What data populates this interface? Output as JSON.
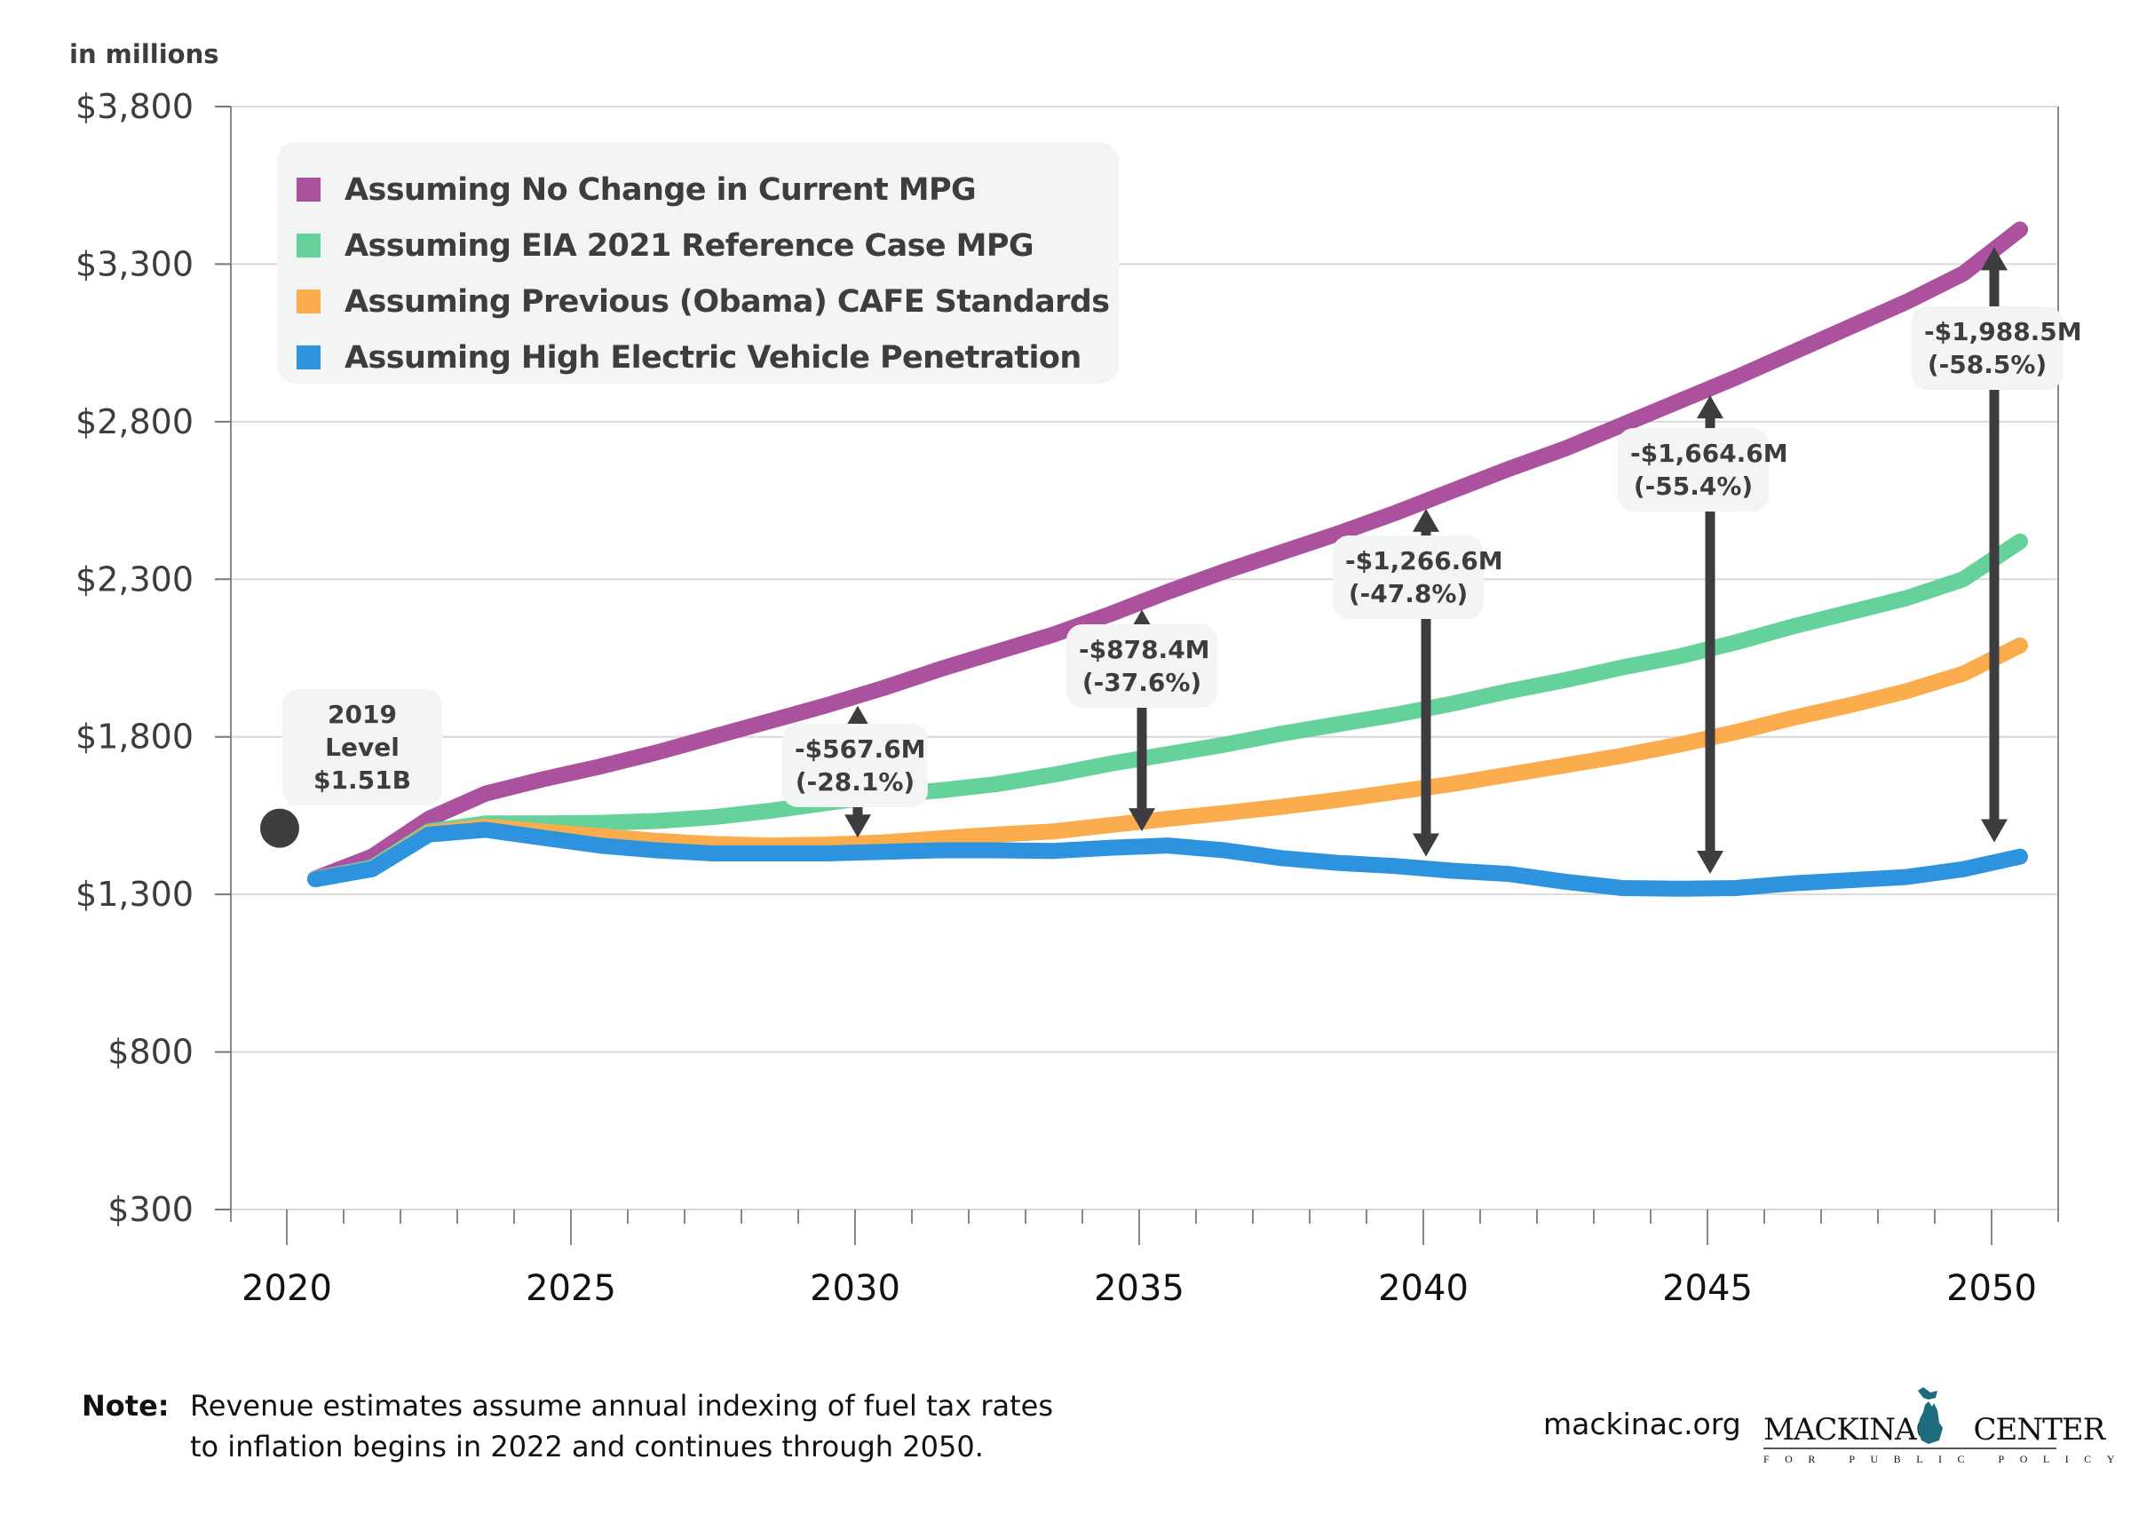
{
  "chart_data": {
    "type": "line",
    "title": "",
    "ylabel": "in millions",
    "xlabel": "",
    "ylim": [
      300,
      3800
    ],
    "yticks": [
      300,
      800,
      1300,
      1800,
      2300,
      2800,
      3300,
      3800
    ],
    "ytick_labels": [
      "$300",
      "$800",
      "$1,300",
      "$1,800",
      "$2,300",
      "$2,800",
      "$3,300",
      "$3,800"
    ],
    "xlim": [
      2019,
      2051
    ],
    "xticks": [
      2020,
      2025,
      2030,
      2035,
      2040,
      2045,
      2050
    ],
    "xtick_labels": [
      "2020",
      "2025",
      "2030",
      "2035",
      "2040",
      "2045",
      "2050"
    ],
    "grid": "horizontal",
    "legend_position": "top-left",
    "x": [
      2020,
      2021,
      2022,
      2023,
      2024,
      2025,
      2026,
      2027,
      2028,
      2029,
      2030,
      2031,
      2032,
      2033,
      2034,
      2035,
      2036,
      2037,
      2038,
      2039,
      2040,
      2041,
      2042,
      2043,
      2044,
      2045,
      2046,
      2047,
      2048,
      2049,
      2050
    ],
    "series": [
      {
        "name": "Assuming No Change in Current MPG",
        "color": "#ab519e",
        "values": [
          1350,
          1420,
          1540,
          1620,
          1665,
          1705,
          1750,
          1800,
          1850,
          1900,
          1955,
          2015,
          2070,
          2125,
          2190,
          2260,
          2325,
          2385,
          2445,
          2510,
          2580,
          2650,
          2715,
          2790,
          2865,
          2940,
          3020,
          3100,
          3180,
          3270,
          3410
        ]
      },
      {
        "name": "Assuming EIA 2021 Reference Case MPG",
        "color": "#66d29b",
        "values": [
          1350,
          1385,
          1500,
          1525,
          1525,
          1527,
          1533,
          1545,
          1565,
          1590,
          1615,
          1630,
          1650,
          1680,
          1715,
          1745,
          1775,
          1810,
          1840,
          1870,
          1905,
          1945,
          1980,
          2020,
          2055,
          2100,
          2150,
          2195,
          2240,
          2300,
          2420
        ]
      },
      {
        "name": "Assuming Previous (Obama) CAFE Standards",
        "color": "#fbad4e",
        "values": [
          1350,
          1380,
          1495,
          1515,
          1500,
          1485,
          1470,
          1460,
          1455,
          1458,
          1465,
          1478,
          1490,
          1500,
          1520,
          1540,
          1558,
          1578,
          1600,
          1625,
          1650,
          1680,
          1710,
          1740,
          1775,
          1815,
          1860,
          1900,
          1945,
          2000,
          2090
        ]
      },
      {
        "name": "Assuming High Electric Vehicle Penetration",
        "color": "#2d93de",
        "values": [
          1348,
          1380,
          1490,
          1505,
          1480,
          1455,
          1440,
          1430,
          1430,
          1430,
          1435,
          1440,
          1440,
          1438,
          1448,
          1455,
          1440,
          1415,
          1400,
          1390,
          1375,
          1365,
          1340,
          1320,
          1318,
          1320,
          1335,
          1345,
          1355,
          1380,
          1420
        ]
      }
    ],
    "reference_point": {
      "year": 2019,
      "value": 1510,
      "label_line1": "2019 Level",
      "label_line2": "$1.51B",
      "color": "#3d3d3f"
    },
    "annotations": [
      {
        "year": 2030,
        "line1": "-$567.6M",
        "line2": "(-28.1%)"
      },
      {
        "year": 2035,
        "line1": "-$878.4M",
        "line2": "(-37.6%)"
      },
      {
        "year": 2040,
        "line1": "-$1,266.6M",
        "line2": "(-47.8%)"
      },
      {
        "year": 2045,
        "line1": "-$1,664.6M",
        "line2": "(-55.4%)"
      },
      {
        "year": 2050,
        "line1": "-$1,988.5M",
        "line2": "(-58.5%)"
      }
    ]
  },
  "unit_label": "in millions",
  "legend": {
    "items": [
      {
        "label": "Assuming No Change in Current MPG",
        "color": "#ab519e"
      },
      {
        "label": "Assuming EIA 2021 Reference Case MPG",
        "color": "#66d29b"
      },
      {
        "label": "Assuming Previous (Obama) CAFE Standards",
        "color": "#fbad4e"
      },
      {
        "label": "Assuming High Electric Vehicle Penetration",
        "color": "#2d93de"
      }
    ]
  },
  "note": {
    "key": "Note:",
    "line1": "Revenue estimates assume annual indexing of fuel tax rates",
    "line2": "to inflation begins in 2022 and continues through 2050."
  },
  "footer": {
    "site": "mackinac.org",
    "logo_main_left": "MACKINAC",
    "logo_main_right": "CENTER",
    "logo_sub": "FOR PUBLIC POLICY",
    "logo_color": "#1d6b7c"
  },
  "colors": {
    "text": "#3d3d3f",
    "annotation_box": "#f3f4f4",
    "arrow": "#3d3d3f",
    "grid": "#d9d9d9"
  }
}
